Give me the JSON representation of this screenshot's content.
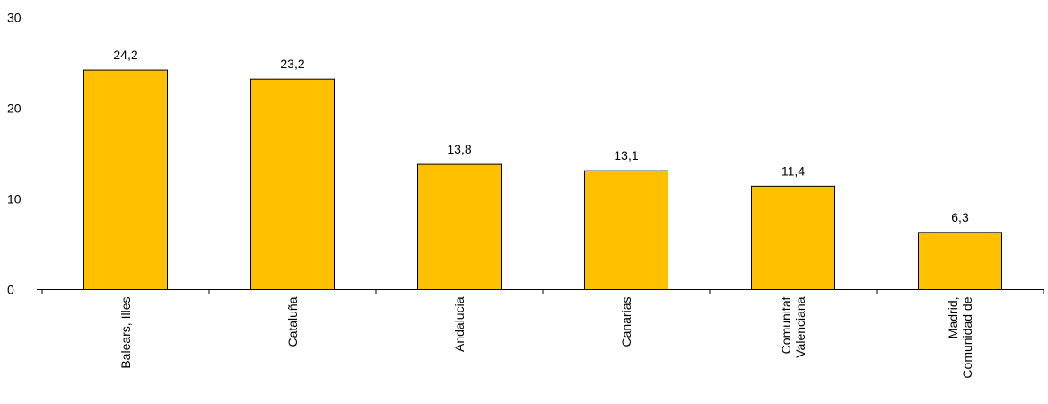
{
  "chart_data": {
    "type": "bar",
    "categories": [
      [
        "Balears, Illes"
      ],
      [
        "Cataluña"
      ],
      [
        "Andalucia"
      ],
      [
        "Canarias"
      ],
      [
        "Comunitat",
        "Valenciana"
      ],
      [
        "Madrid,",
        "Comunidad de"
      ]
    ],
    "values": [
      24.2,
      23.2,
      13.8,
      13.1,
      11.4,
      6.3
    ],
    "data_labels": [
      "24,2",
      "23,2",
      "13,8",
      "13,1",
      "11,4",
      "6,3"
    ],
    "yticks": [
      0,
      10,
      20,
      30
    ],
    "ylim": [
      0,
      30
    ],
    "bar_color": "#FFC000",
    "bar_stroke": "#000000",
    "grid": false,
    "legend": false
  }
}
